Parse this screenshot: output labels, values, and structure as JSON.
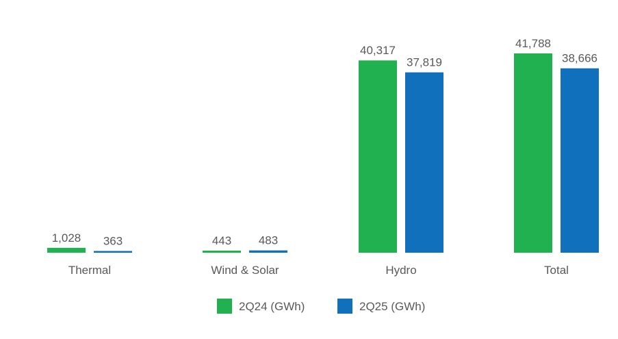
{
  "chart_data": {
    "type": "bar",
    "title": "",
    "xlabel": "",
    "ylabel": "",
    "categories": [
      "Thermal",
      "Wind & Solar",
      "Hydro",
      "Total"
    ],
    "series": [
      {
        "name": "2Q24 (GWh)",
        "color": "#22b150",
        "values": [
          1028,
          443,
          40317,
          41788
        ],
        "labels": [
          "1,028",
          "443",
          "40,317",
          "41,788"
        ]
      },
      {
        "name": "2Q25 (GWh)",
        "color": "#1170bb",
        "values": [
          363,
          483,
          37819,
          38666
        ],
        "labels": [
          "363",
          "483",
          "37,819",
          "38,666"
        ]
      }
    ],
    "ylim": [
      0,
      41788
    ],
    "grid": false,
    "legend_position": "bottom-center"
  }
}
